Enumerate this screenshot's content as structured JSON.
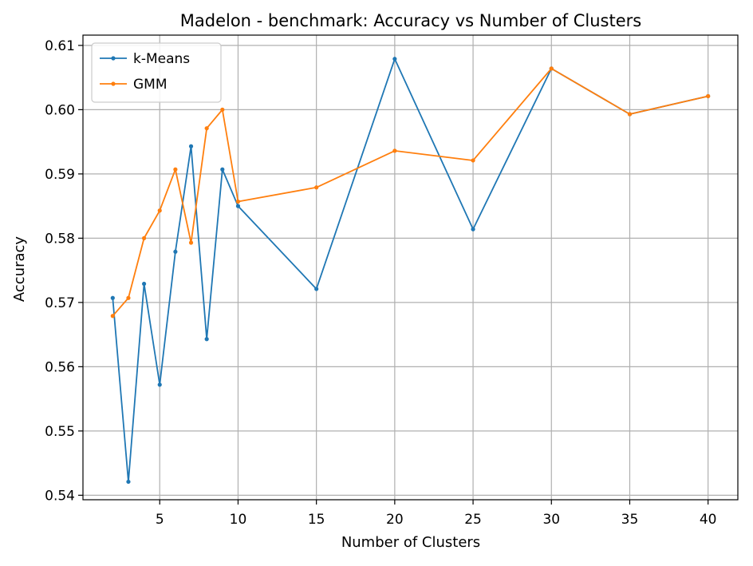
{
  "chart_data": {
    "type": "line",
    "title": "Madelon - benchmark: Accuracy vs Number of Clusters",
    "xlabel": "Number of Clusters",
    "ylabel": "Accuracy",
    "xlim": [
      0.1,
      41.9
    ],
    "ylim": [
      0.5393,
      0.6116
    ],
    "xticks": [
      5,
      10,
      15,
      20,
      25,
      30,
      35,
      40
    ],
    "xtick_labels": [
      "5",
      "10",
      "15",
      "20",
      "25",
      "30",
      "35",
      "40"
    ],
    "yticks": [
      0.54,
      0.55,
      0.56,
      0.57,
      0.58,
      0.59,
      0.6,
      0.61
    ],
    "ytick_labels": [
      "0.54",
      "0.55",
      "0.56",
      "0.57",
      "0.58",
      "0.59",
      "0.60",
      "0.61"
    ],
    "grid": true,
    "legend_position": "top-left",
    "x": [
      2,
      3,
      4,
      5,
      6,
      7,
      8,
      9,
      10,
      15,
      20,
      25,
      30,
      35,
      40
    ],
    "series": [
      {
        "name": "k-Means",
        "color": "#1f77b4",
        "values": [
          0.5707,
          0.5421,
          0.5729,
          0.5572,
          0.5779,
          0.5943,
          0.5643,
          0.5907,
          0.585,
          0.5721,
          0.6079,
          0.5814,
          0.6064,
          0.5993,
          0.6021
        ]
      },
      {
        "name": "GMM",
        "color": "#ff7f0e",
        "values": [
          0.5679,
          0.5707,
          0.58,
          0.5843,
          0.5907,
          0.5793,
          0.5971,
          0.6,
          0.5857,
          0.5879,
          0.5936,
          0.5921,
          0.6064,
          0.5993,
          0.6021
        ]
      }
    ]
  }
}
